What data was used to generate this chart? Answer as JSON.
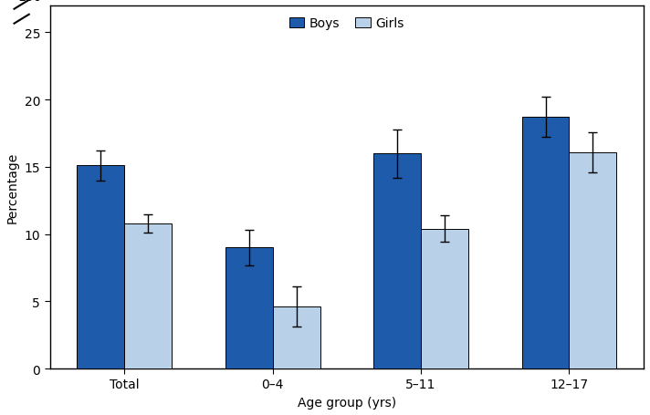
{
  "categories": [
    "Total",
    "0–4",
    "5–11",
    "12–17"
  ],
  "boys_values": [
    15.1,
    9.0,
    16.0,
    18.7
  ],
  "girls_values": [
    10.8,
    4.6,
    10.4,
    16.1
  ],
  "boys_errors": [
    1.1,
    1.3,
    1.8,
    1.5
  ],
  "girls_errors": [
    0.7,
    1.5,
    1.0,
    1.5
  ],
  "boys_color": "#1f5bab",
  "girls_color": "#b8d0e8",
  "xlabel": "Age group (yrs)",
  "ylabel": "Percentage",
  "bar_width": 0.32,
  "legend_labels": [
    "Boys",
    "Girls"
  ],
  "background_color": "#ffffff",
  "axis_fontsize": 10,
  "tick_fontsize": 10,
  "legend_fontsize": 10
}
